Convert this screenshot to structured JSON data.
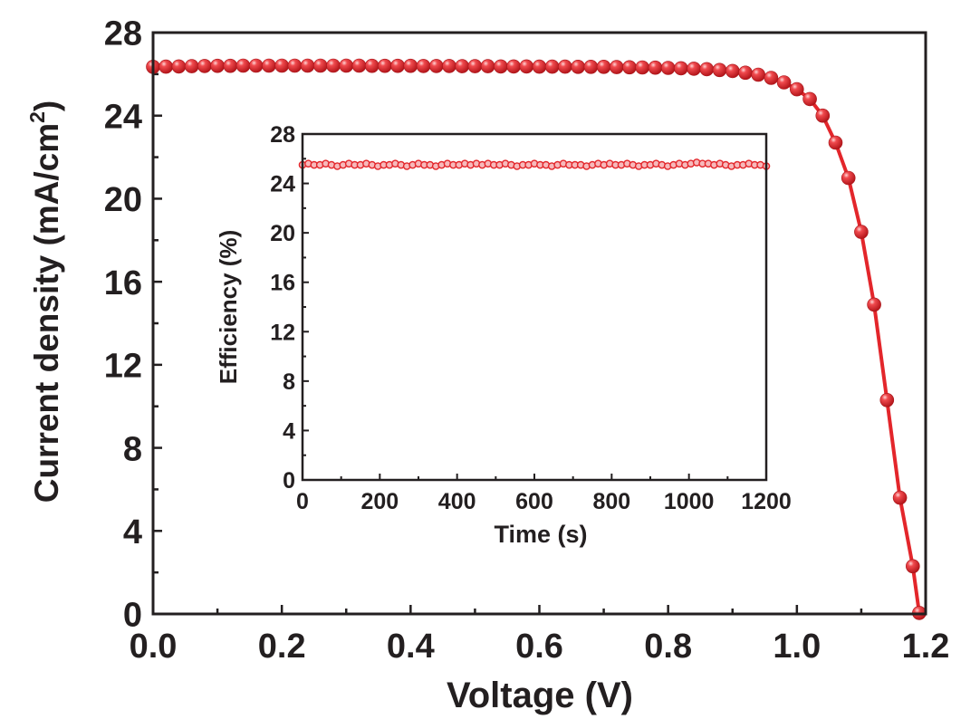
{
  "chart_data": [
    {
      "type": "line",
      "role": "main",
      "xlabel": "Voltage (V)",
      "ylabel_main": "Current density (mA/cm",
      "ylabel_sup": "2",
      "ylabel_close": ")",
      "xlim": [
        0.0,
        1.2
      ],
      "ylim": [
        0,
        28
      ],
      "x_ticks": [
        0.0,
        0.2,
        0.4,
        0.6,
        0.8,
        1.0,
        1.2
      ],
      "x_tick_labels": [
        "0.0",
        "0.2",
        "0.4",
        "0.6",
        "0.8",
        "1.0",
        "1.2"
      ],
      "y_ticks": [
        0,
        4,
        8,
        12,
        16,
        20,
        24,
        28
      ],
      "y_tick_labels": [
        "0",
        "4",
        "8",
        "12",
        "16",
        "20",
        "24",
        "28"
      ],
      "grid": false,
      "color": "#e3262b",
      "marker": "sphere",
      "x": [
        0.0,
        0.02,
        0.04,
        0.06,
        0.08,
        0.1,
        0.12,
        0.14,
        0.16,
        0.18,
        0.2,
        0.22,
        0.24,
        0.26,
        0.28,
        0.3,
        0.32,
        0.34,
        0.36,
        0.38,
        0.4,
        0.42,
        0.44,
        0.46,
        0.48,
        0.5,
        0.52,
        0.54,
        0.56,
        0.58,
        0.6,
        0.62,
        0.64,
        0.66,
        0.68,
        0.7,
        0.72,
        0.74,
        0.76,
        0.78,
        0.8,
        0.82,
        0.84,
        0.86,
        0.88,
        0.9,
        0.92,
        0.94,
        0.96,
        0.98,
        1.0,
        1.02,
        1.04,
        1.06,
        1.08,
        1.1,
        1.12,
        1.14,
        1.16,
        1.18,
        1.19
      ],
      "y": [
        26.35,
        26.36,
        26.37,
        26.38,
        26.39,
        26.4,
        26.4,
        26.41,
        26.41,
        26.41,
        26.41,
        26.41,
        26.41,
        26.41,
        26.41,
        26.41,
        26.41,
        26.4,
        26.4,
        26.4,
        26.4,
        26.39,
        26.39,
        26.39,
        26.38,
        26.38,
        26.38,
        26.37,
        26.37,
        26.37,
        26.36,
        26.36,
        26.36,
        26.35,
        26.35,
        26.35,
        26.34,
        26.33,
        26.32,
        26.31,
        26.3,
        26.28,
        26.26,
        26.24,
        26.2,
        26.15,
        26.07,
        25.97,
        25.82,
        25.6,
        25.27,
        24.8,
        24.0,
        22.7,
        21.0,
        18.4,
        14.9,
        10.3,
        5.6,
        2.3,
        0.05
      ]
    },
    {
      "type": "line",
      "role": "inset",
      "xlabel": "Time (s)",
      "ylabel": "Efficiency (%)",
      "xlim": [
        0,
        1200
      ],
      "ylim": [
        0,
        28
      ],
      "x_ticks": [
        0,
        200,
        400,
        600,
        800,
        1000,
        1200
      ],
      "x_tick_labels": [
        "0",
        "200",
        "400",
        "600",
        "800",
        "1000",
        "1200"
      ],
      "y_ticks": [
        0,
        4,
        8,
        12,
        16,
        20,
        24,
        28
      ],
      "y_tick_labels": [
        "0",
        "4",
        "8",
        "12",
        "16",
        "20",
        "24",
        "28"
      ],
      "grid": false,
      "color": "#e3262b",
      "marker": "hollow-sphere",
      "x_start": 0,
      "x_step": 15,
      "y": [
        25.5,
        25.6,
        25.5,
        25.5,
        25.6,
        25.5,
        25.4,
        25.5,
        25.6,
        25.5,
        25.5,
        25.6,
        25.5,
        25.4,
        25.5,
        25.5,
        25.6,
        25.5,
        25.4,
        25.5,
        25.6,
        25.5,
        25.5,
        25.4,
        25.5,
        25.6,
        25.5,
        25.5,
        25.6,
        25.5,
        25.6,
        25.5,
        25.6,
        25.5,
        25.5,
        25.6,
        25.5,
        25.4,
        25.5,
        25.5,
        25.6,
        25.5,
        25.5,
        25.4,
        25.5,
        25.6,
        25.5,
        25.5,
        25.5,
        25.4,
        25.5,
        25.6,
        25.5,
        25.6,
        25.5,
        25.5,
        25.6,
        25.5,
        25.4,
        25.5,
        25.5,
        25.6,
        25.5,
        25.4,
        25.5,
        25.6,
        25.5,
        25.6,
        25.7,
        25.6,
        25.6,
        25.5,
        25.6,
        25.5,
        25.4,
        25.5,
        25.5,
        25.6,
        25.5,
        25.5,
        25.4
      ]
    }
  ]
}
